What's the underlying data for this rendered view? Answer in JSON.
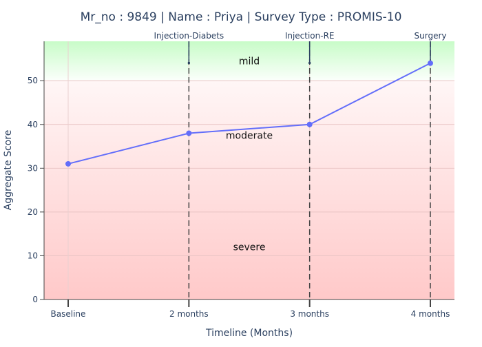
{
  "chart_data": {
    "type": "line",
    "title": "Mr_no : 9849 | Name : Priya | Survey Type : PROMIS-10",
    "xlabel": "Timeline (Months)",
    "ylabel": "Aggregate Score",
    "categories": [
      "Baseline",
      "2 months",
      "3 months",
      "4 months"
    ],
    "series": [
      {
        "values": [
          31,
          38,
          40,
          54
        ],
        "color": "#636efa"
      }
    ],
    "ylim": [
      0,
      59
    ],
    "yticks": [
      0,
      10,
      20,
      30,
      40,
      50
    ],
    "grid": true,
    "zones": [
      {
        "label": "severe",
        "label_y": 12,
        "from": 0,
        "to": 50,
        "color_bottom": "#ffc9c9",
        "color_top": "#fff5f5"
      },
      {
        "label": "moderate",
        "label_y": 37.5,
        "from": 30,
        "to": 50,
        "color": "#fff0f0"
      },
      {
        "label": "mild",
        "label_y": 54.5,
        "from": 50,
        "to": 59,
        "color_bottom": "#fafffa",
        "color_top": "#ccffcc"
      }
    ],
    "events": [
      {
        "label": "Injection-Diabets",
        "category": "2 months"
      },
      {
        "label": "Injection-RE",
        "category": "3 months"
      },
      {
        "label": "Surgery",
        "category": "4 months"
      }
    ]
  }
}
